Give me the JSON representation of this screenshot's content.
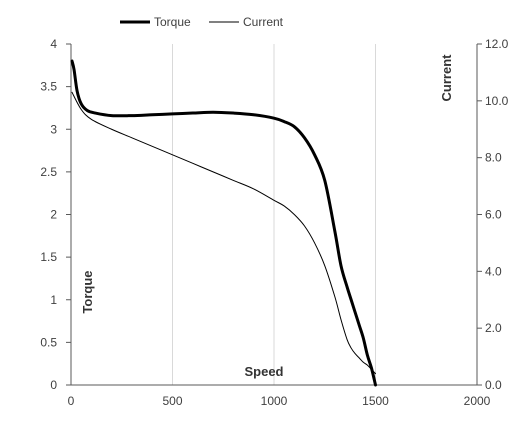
{
  "chart_data": {
    "type": "line",
    "title": "",
    "xlabel": "Speed",
    "ylabel": "Torque",
    "y2label": "Current",
    "xlim": [
      0,
      2000
    ],
    "ylim": [
      0,
      4
    ],
    "y2lim": [
      0,
      12
    ],
    "x_ticks": [
      "0",
      "500",
      "1000",
      "1500",
      "2000"
    ],
    "y_ticks": [
      "0",
      "0.5",
      "1",
      "1.5",
      "2",
      "2.5",
      "3",
      "3.5",
      "4"
    ],
    "y2_ticks": [
      "0.0",
      "2.0",
      "4.0",
      "6.0",
      "8.0",
      "10.0",
      "12.0"
    ],
    "grid": "vertical",
    "legend": "top",
    "series": [
      {
        "name": "Torque",
        "axis": "left",
        "color": "#000000",
        "line_style": "thick",
        "x": [
          5,
          15,
          30,
          50,
          80,
          120,
          200,
          300,
          400,
          500,
          600,
          700,
          800,
          900,
          1000,
          1050,
          1100,
          1150,
          1200,
          1250,
          1300,
          1330,
          1360,
          1380,
          1400,
          1420,
          1440,
          1460,
          1480,
          1500
        ],
        "y": [
          3.8,
          3.7,
          3.45,
          3.3,
          3.22,
          3.19,
          3.16,
          3.16,
          3.17,
          3.18,
          3.19,
          3.2,
          3.19,
          3.17,
          3.13,
          3.09,
          3.03,
          2.9,
          2.7,
          2.4,
          1.8,
          1.4,
          1.15,
          1.0,
          0.85,
          0.7,
          0.55,
          0.35,
          0.2,
          0.0
        ]
      },
      {
        "name": "Current",
        "axis": "right",
        "color": "#000000",
        "line_style": "thin",
        "x": [
          5,
          50,
          100,
          200,
          300,
          400,
          500,
          600,
          700,
          800,
          900,
          1000,
          1050,
          1100,
          1150,
          1200,
          1250,
          1300,
          1330,
          1360,
          1380,
          1400,
          1420,
          1440,
          1460,
          1480,
          1500
        ],
        "y": [
          10.3,
          9.7,
          9.35,
          9.0,
          8.7,
          8.4,
          8.1,
          7.8,
          7.5,
          7.2,
          6.9,
          6.5,
          6.3,
          6.0,
          5.6,
          5.0,
          4.2,
          3.1,
          2.3,
          1.6,
          1.3,
          1.1,
          0.95,
          0.8,
          0.7,
          0.55,
          0.4
        ]
      }
    ]
  }
}
